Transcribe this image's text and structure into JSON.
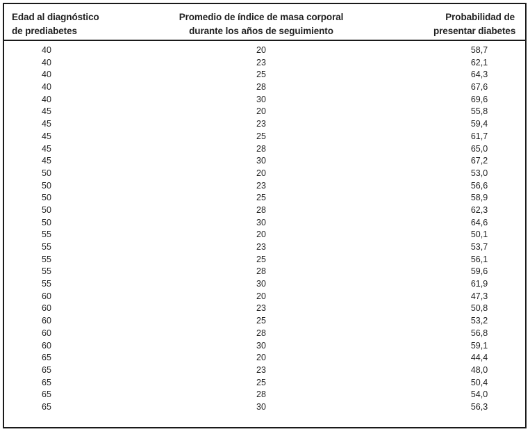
{
  "table": {
    "columns": [
      {
        "line1": "Edad al diagnóstico",
        "line2": "de prediabetes"
      },
      {
        "line1": "Promedio de índice de masa corporal",
        "line2": "durante los años de seguimiento"
      },
      {
        "line1": "Probabilidad de",
        "line2": "presentar diabetes"
      }
    ],
    "rows": [
      [
        "40",
        "20",
        "58,7"
      ],
      [
        "40",
        "23",
        "62,1"
      ],
      [
        "40",
        "25",
        "64,3"
      ],
      [
        "40",
        "28",
        "67,6"
      ],
      [
        "40",
        "30",
        "69,6"
      ],
      [
        "45",
        "20",
        "55,8"
      ],
      [
        "45",
        "23",
        "59,4"
      ],
      [
        "45",
        "25",
        "61,7"
      ],
      [
        "45",
        "28",
        "65,0"
      ],
      [
        "45",
        "30",
        "67,2"
      ],
      [
        "50",
        "20",
        "53,0"
      ],
      [
        "50",
        "23",
        "56,6"
      ],
      [
        "50",
        "25",
        "58,9"
      ],
      [
        "50",
        "28",
        "62,3"
      ],
      [
        "50",
        "30",
        "64,6"
      ],
      [
        "55",
        "20",
        "50,1"
      ],
      [
        "55",
        "23",
        "53,7"
      ],
      [
        "55",
        "25",
        "56,1"
      ],
      [
        "55",
        "28",
        "59,6"
      ],
      [
        "55",
        "30",
        "61,9"
      ],
      [
        "60",
        "20",
        "47,3"
      ],
      [
        "60",
        "23",
        "50,8"
      ],
      [
        "60",
        "25",
        "53,2"
      ],
      [
        "60",
        "28",
        "56,8"
      ],
      [
        "60",
        "30",
        "59,1"
      ],
      [
        "65",
        "20",
        "44,4"
      ],
      [
        "65",
        "23",
        "48,0"
      ],
      [
        "65",
        "25",
        "50,4"
      ],
      [
        "65",
        "28",
        "54,0"
      ],
      [
        "65",
        "30",
        "56,3"
      ]
    ]
  },
  "colors": {
    "border": "#1a1a1a",
    "text": "#1f1f1f"
  }
}
